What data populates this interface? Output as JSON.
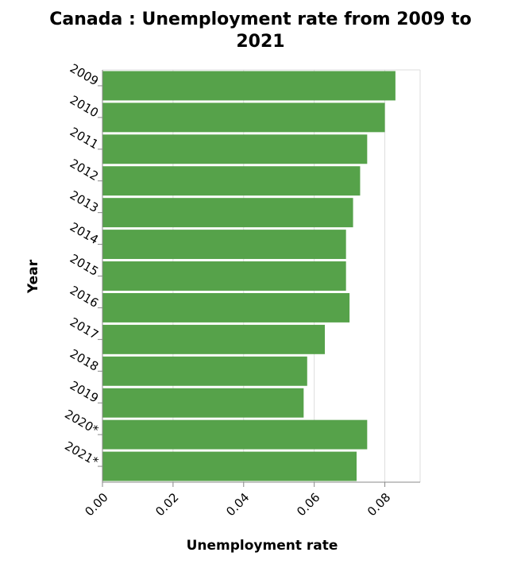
{
  "chart_data": {
    "type": "bar",
    "orientation": "horizontal",
    "title": "Canada : Unemployment rate from 2009 to 2021",
    "title_lines": [
      "Canada : Unemployment rate from 2009 to",
      "2021"
    ],
    "xlabel": "Unemployment rate",
    "ylabel": "Year",
    "categories": [
      "2009",
      "2010",
      "2011",
      "2012",
      "2013",
      "2014",
      "2015",
      "2016",
      "2017",
      "2018",
      "2019",
      "2020*",
      "2021*"
    ],
    "values": [
      0.083,
      0.08,
      0.075,
      0.073,
      0.071,
      0.069,
      0.069,
      0.07,
      0.063,
      0.058,
      0.057,
      0.075,
      0.072
    ],
    "xlim": [
      0,
      0.09
    ],
    "xticks": [
      0,
      0.02,
      0.04,
      0.06,
      0.08
    ],
    "xtick_labels": [
      "0.00",
      "0.02",
      "0.04",
      "0.06",
      "0.08"
    ],
    "grid": "vertical",
    "bar_color": "#56a24a",
    "legend": "none"
  }
}
